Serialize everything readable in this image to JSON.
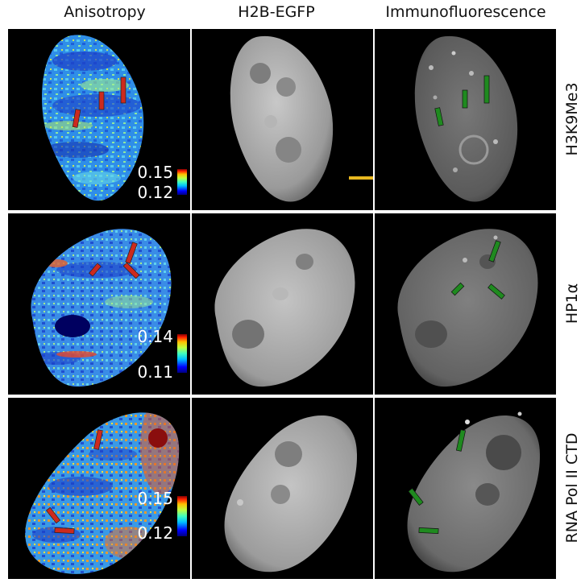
{
  "column_headers": [
    "Anisotropy",
    "H2B-EGFP",
    "Immunofluorescence"
  ],
  "row_labels": [
    "H3K9Me3",
    "HP1α",
    "RNA Pol II CTD"
  ],
  "colorbars": [
    {
      "max": "0.15",
      "min": "0.12"
    },
    {
      "max": "0.14",
      "min": "0.11"
    },
    {
      "max": "0.15",
      "min": "0.12"
    }
  ],
  "colormap": [
    "#00007f",
    "#0000ff",
    "#00bfff",
    "#40ffbf",
    "#bfff40",
    "#ffbf00",
    "#ff2000",
    "#7f0000"
  ],
  "marker_colors": {
    "anisotropy_bar": "#cc2a1e",
    "immuno_bar": "#1f8a1f",
    "scale_bar": "#e8b820"
  }
}
